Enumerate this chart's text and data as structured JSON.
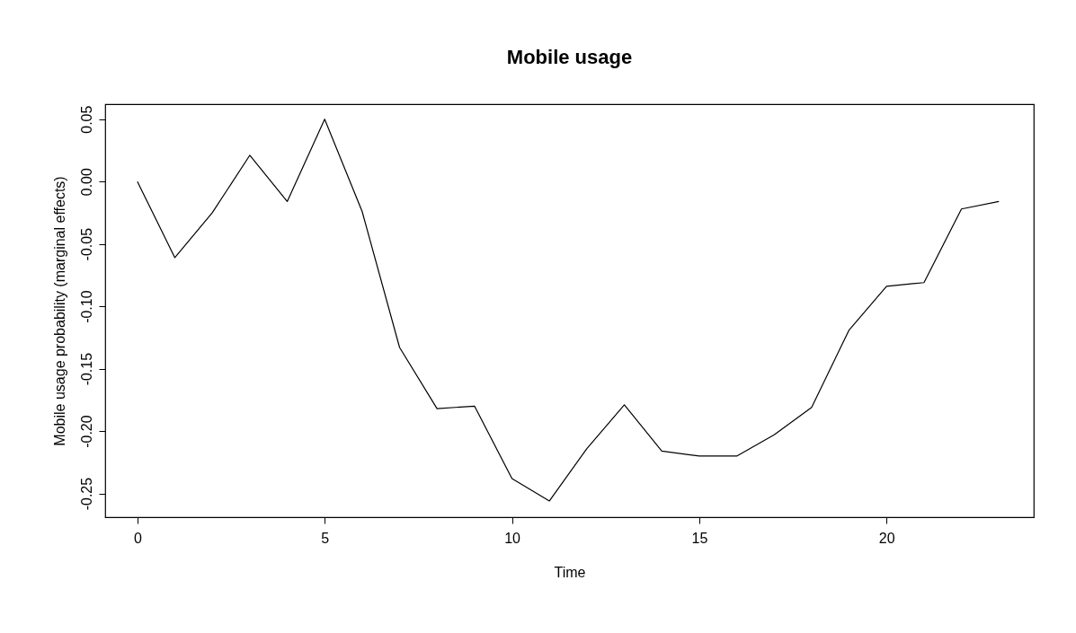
{
  "chart_data": {
    "type": "line",
    "title": "Mobile usage",
    "xlabel": "Time",
    "ylabel": "Mobile usage probability (marginal effects)",
    "x": [
      0,
      1,
      2,
      3,
      4,
      5,
      6,
      7,
      8,
      9,
      10,
      11,
      12,
      13,
      14,
      15,
      16,
      17,
      18,
      19,
      20,
      21,
      22,
      23
    ],
    "series": [
      {
        "color": "#000000",
        "values": [
          0.0,
          -0.061,
          -0.025,
          0.021,
          -0.016,
          0.05,
          -0.024,
          -0.133,
          -0.182,
          -0.18,
          -0.238,
          -0.256,
          -0.214,
          -0.179,
          -0.216,
          -0.22,
          -0.22,
          -0.203,
          -0.181,
          -0.119,
          -0.084,
          -0.081,
          -0.022,
          -0.016
        ]
      }
    ],
    "xlim": [
      -0.86,
      23.93
    ],
    "ylim": [
      -0.269,
      0.062
    ],
    "xticks": [
      0,
      5,
      10,
      15,
      20
    ],
    "yticks": [
      {
        "value": 0.05,
        "label": "0.05"
      },
      {
        "value": 0,
        "label": "0.00"
      },
      {
        "value": -0.05,
        "label": "-0.05"
      },
      {
        "value": -0.1,
        "label": "-0.10"
      },
      {
        "value": -0.15,
        "label": "-0.15"
      },
      {
        "value": -0.2,
        "label": "-0.20"
      },
      {
        "value": -0.25,
        "label": "-0.25"
      }
    ],
    "grid": false,
    "legend": false,
    "marker": "none",
    "line_style": "solid"
  }
}
